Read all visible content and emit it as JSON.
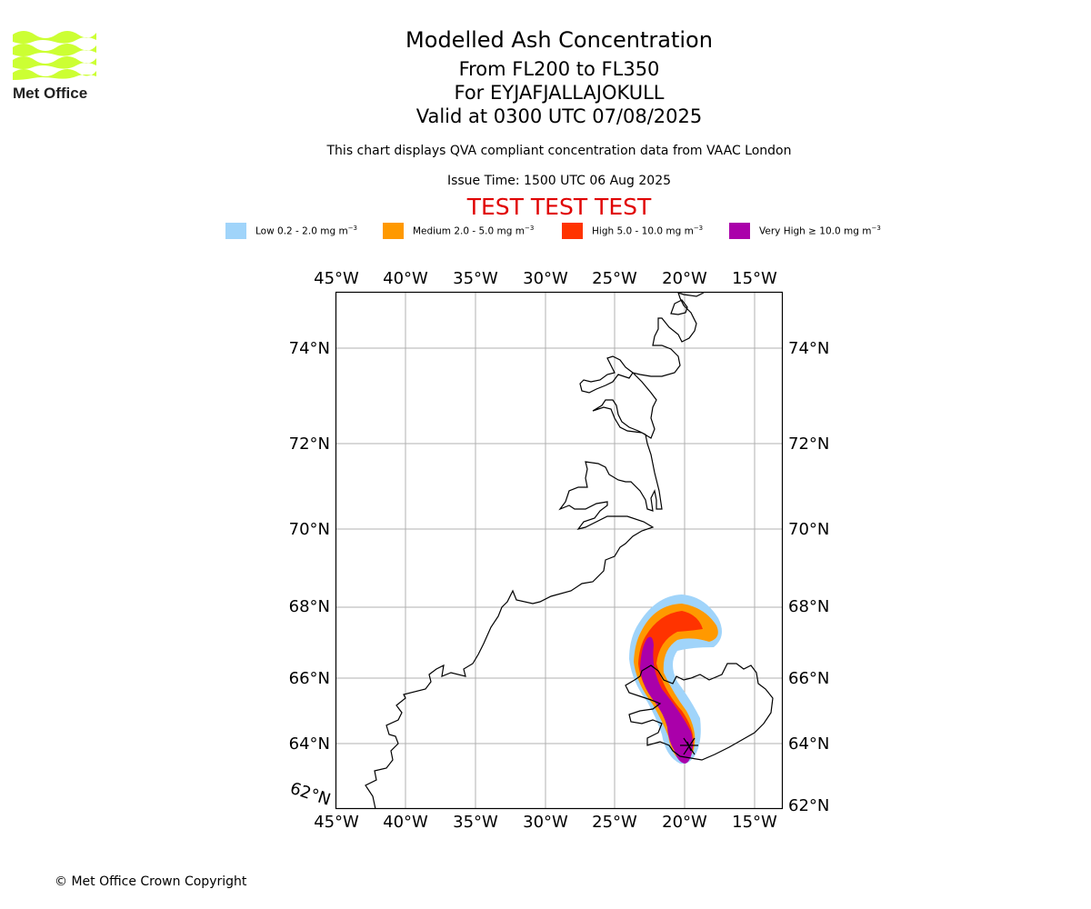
{
  "logo": {
    "text": "Met Office",
    "color": "#ccff33"
  },
  "header": {
    "title": "Modelled Ash Concentration",
    "level_range": "From FL200 to FL350",
    "volcano": "For EYJAFJALLAJOKULL",
    "valid_time": "Valid at 0300 UTC 07/08/2025",
    "disclaimer": "This chart displays QVA compliant concentration data from VAAC London",
    "issue_time": "Issue Time: 1500 UTC 06 Aug 2025",
    "test_banner": "TEST TEST TEST"
  },
  "legend": [
    {
      "label": "Low 0.2 - 2.0 mg m",
      "exp": "−3",
      "color": "#a0d4fa"
    },
    {
      "label": "Medium 2.0 - 5.0 mg m",
      "exp": "−3",
      "color": "#ff9900"
    },
    {
      "label": "High 5.0 - 10.0 mg m",
      "exp": "−3",
      "color": "#ff3300"
    },
    {
      "label": "Very High ≥ 10.0 mg m",
      "exp": "−3",
      "color": "#aa00aa"
    }
  ],
  "map": {
    "lon_ticks": [
      "45°W",
      "40°W",
      "35°W",
      "30°W",
      "25°W",
      "20°W",
      "15°W"
    ],
    "lat_ticks": [
      "74°N",
      "72°N",
      "70°N",
      "68°N",
      "66°N",
      "64°N"
    ],
    "lat_tick_extra_right": "62°N",
    "lat_tick_extra_left": "62°N",
    "gridlines": true
  },
  "footer": {
    "copyright": "© Met Office Crown Copyright"
  }
}
